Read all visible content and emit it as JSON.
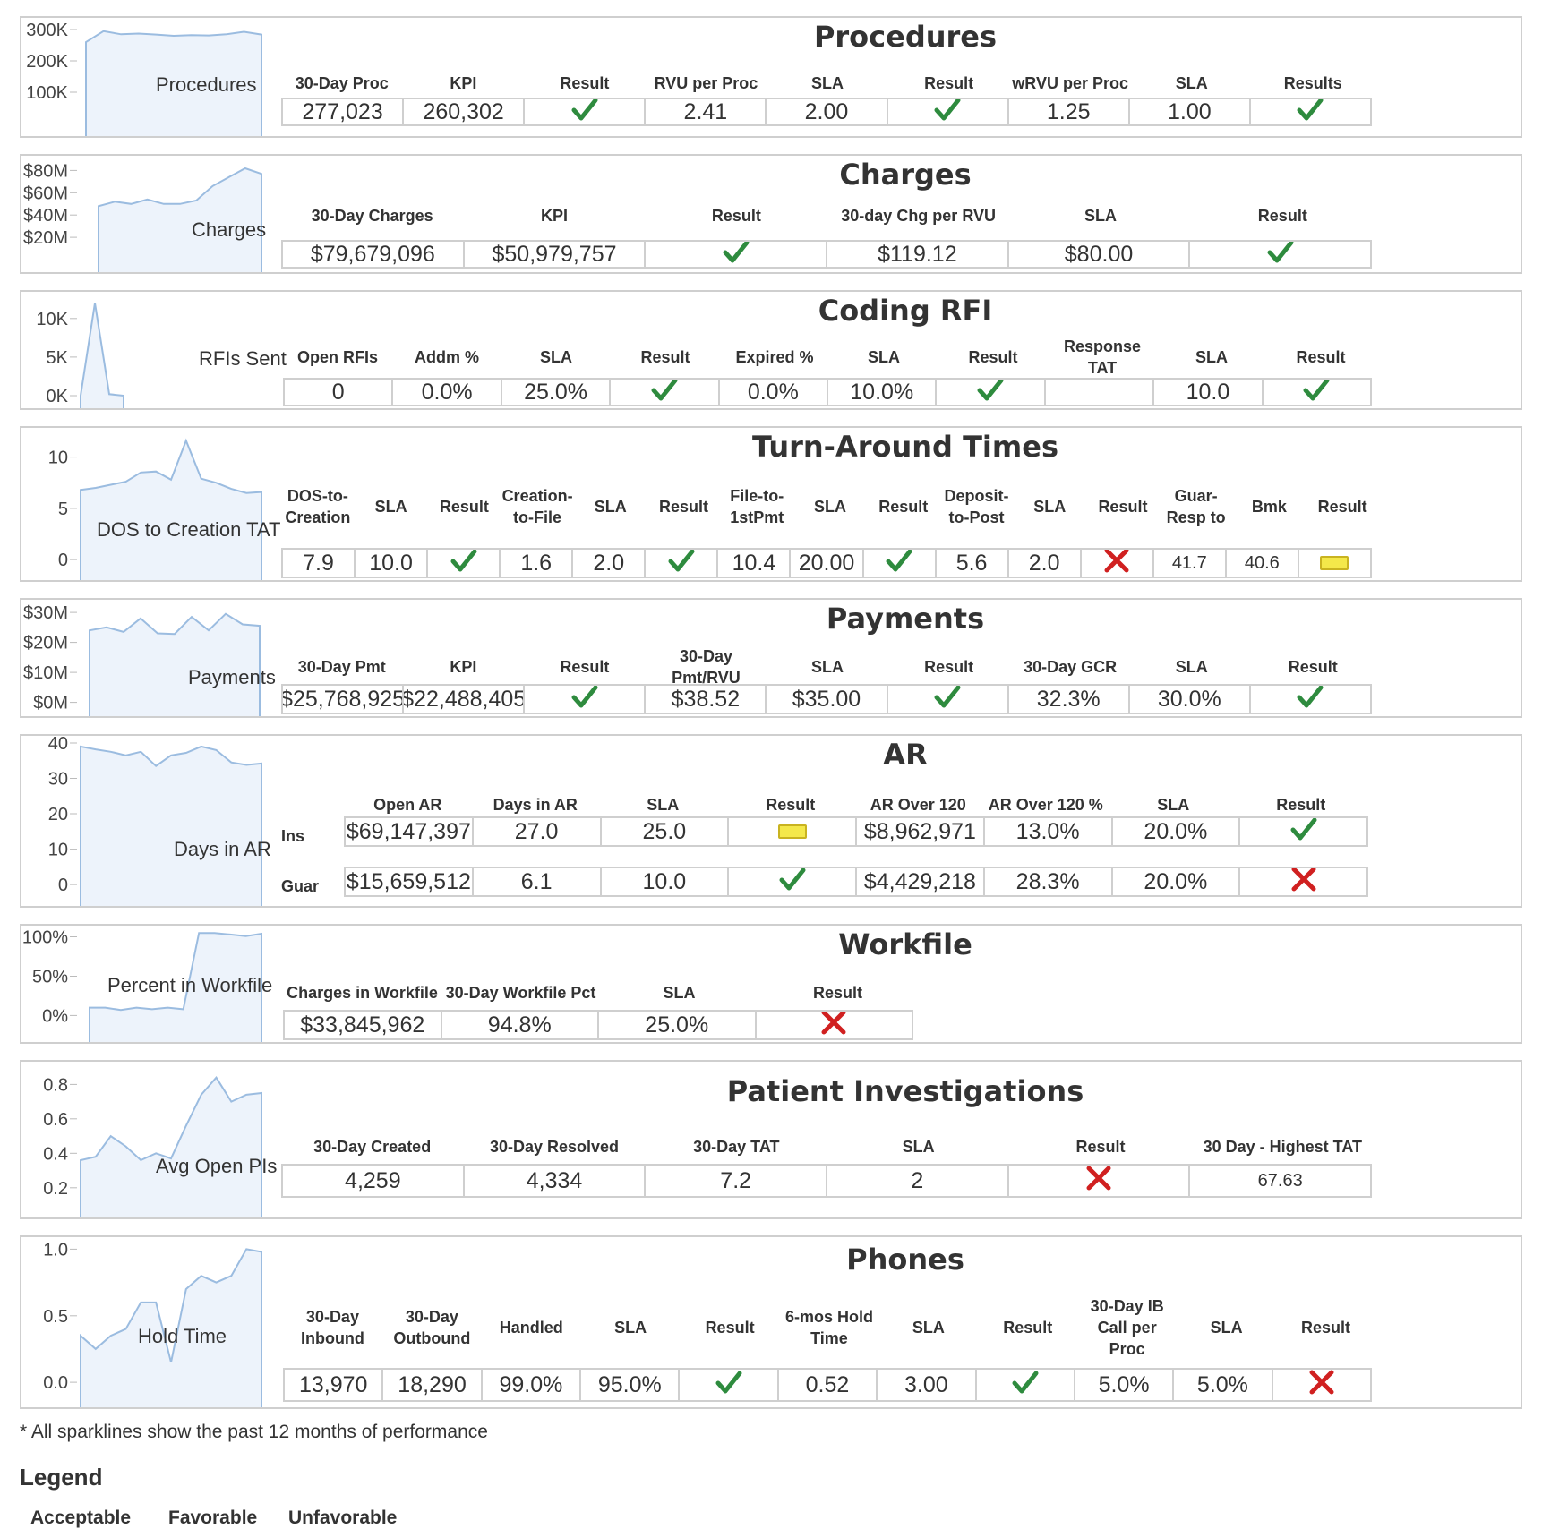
{
  "colors": {
    "spark_line": "#9bbce0",
    "spark_fill": "#edf3fb",
    "check": "#2e8b3e",
    "cross": "#d02020",
    "warn": "#f4e84a"
  },
  "procedures": {
    "title": "Procedures",
    "spark_label": "Procedures",
    "ticks": [
      "300K",
      "200K",
      "100K"
    ],
    "headers": [
      "30-Day Proc",
      "KPI",
      "Result",
      "RVU per Proc",
      "SLA",
      "Result",
      "wRVU per Proc",
      "SLA",
      "Results"
    ],
    "values": [
      "277,023",
      "260,302",
      "check-icon",
      "2.41",
      "2.00",
      "check-icon",
      "1.25",
      "1.00",
      "check-icon"
    ]
  },
  "charges": {
    "title": "Charges",
    "spark_label": "Charges",
    "ticks": [
      "$80M",
      "$60M",
      "$40M",
      "$20M"
    ],
    "headers": [
      "30-Day Charges",
      "KPI",
      "Result",
      "30-day Chg per RVU",
      "SLA",
      "Result"
    ],
    "values": [
      "$79,679,096",
      "$50,979,757",
      "check-icon",
      "$119.12",
      "$80.00",
      "check-icon"
    ]
  },
  "coding_rfi": {
    "title": "Coding RFI",
    "spark_label": "RFIs Sent",
    "ticks": [
      "10K",
      "5K",
      "0K"
    ],
    "headers": [
      "Open RFIs",
      "Addm %",
      "SLA",
      "Result",
      "Expired %",
      "SLA",
      "Result",
      "Response TAT",
      "SLA",
      "Result"
    ],
    "values": [
      "0",
      "0.0%",
      "25.0%",
      "check-icon",
      "0.0%",
      "10.0%",
      "check-icon",
      "",
      "10.0",
      "check-icon"
    ]
  },
  "tat": {
    "title": "Turn-Around Times",
    "spark_label": "DOS to Creation TAT",
    "ticks": [
      "10",
      "5",
      "0"
    ],
    "headers": [
      "DOS-to-\nCreation",
      "SLA",
      "Result",
      "Creation-\nto-File",
      "SLA",
      "Result",
      "File-to-\n1stPmt",
      "SLA",
      "Result",
      "Deposit-\nto-Post",
      "SLA",
      "Result",
      "Guar-\nResp to",
      "Bmk",
      "Result"
    ],
    "values": [
      "7.9",
      "10.0",
      "check-icon",
      "1.6",
      "2.0",
      "check-icon",
      "10.4",
      "20.00",
      "check-icon",
      "5.6",
      "2.0",
      "cross-icon",
      "41.7",
      "40.6",
      "warn-icon"
    ]
  },
  "payments": {
    "title": "Payments",
    "spark_label": "Payments",
    "ticks": [
      "$30M",
      "$20M",
      "$10M",
      "$0M"
    ],
    "headers": [
      "30-Day Pmt",
      "KPI",
      "Result",
      "30-Day Pmt/RVU",
      "SLA",
      "Result",
      "30-Day GCR",
      "SLA",
      "Result"
    ],
    "values": [
      "$25,768,925",
      "$22,488,405",
      "check-icon",
      "$38.52",
      "$35.00",
      "check-icon",
      "32.3%",
      "30.0%",
      "check-icon"
    ]
  },
  "ar": {
    "title": "AR",
    "spark_label": "Days in AR",
    "ticks": [
      "40",
      "30",
      "20",
      "10",
      "0"
    ],
    "headers": [
      "Open AR",
      "Days in AR",
      "SLA",
      "Result",
      "AR Over 120",
      "AR Over 120 %",
      "SLA",
      "Result"
    ],
    "rows": [
      {
        "label": "Ins",
        "values": [
          "$69,147,397",
          "27.0",
          "25.0",
          "warn-icon",
          "$8,962,971",
          "13.0%",
          "20.0%",
          "check-icon"
        ]
      },
      {
        "label": "Guar",
        "values": [
          "$15,659,512",
          "6.1",
          "10.0",
          "check-icon",
          "$4,429,218",
          "28.3%",
          "20.0%",
          "cross-icon"
        ]
      }
    ]
  },
  "workfile": {
    "title": "Workfile",
    "spark_label": "Percent in Workfile",
    "ticks": [
      "100%",
      "50%",
      "0%"
    ],
    "headers": [
      "Charges in Workfile",
      "30-Day Workfile Pct",
      "SLA",
      "Result"
    ],
    "values": [
      "$33,845,962",
      "94.8%",
      "25.0%",
      "cross-icon"
    ]
  },
  "pi": {
    "title": "Patient Investigations",
    "spark_label": "Avg Open PIs",
    "ticks": [
      "0.8",
      "0.6",
      "0.4",
      "0.2"
    ],
    "headers": [
      "30-Day Created",
      "30-Day Resolved",
      "30-Day TAT",
      "SLA",
      "Result",
      "30 Day - Highest TAT"
    ],
    "values": [
      "4,259",
      "4,334",
      "7.2",
      "2",
      "cross-icon",
      "67.63"
    ]
  },
  "phones": {
    "title": "Phones",
    "spark_label": "Hold Time",
    "ticks": [
      "1.0",
      "0.5",
      "0.0"
    ],
    "headers": [
      "30-Day\nInbound",
      "30-Day\nOutbound",
      "Handled",
      "SLA",
      "Result",
      "6-mos Hold\nTime",
      "SLA",
      "Result",
      "30-Day IB\nCall per\nProc",
      "SLA",
      "Result"
    ],
    "values": [
      "13,970",
      "18,290",
      "99.0%",
      "95.0%",
      "check-icon",
      "0.52",
      "3.00",
      "check-icon",
      "5.0%",
      "5.0%",
      "cross-icon"
    ]
  },
  "sparklines": {
    "procedures": [
      260,
      295,
      285,
      287,
      284,
      280,
      282,
      281,
      285,
      293,
      284
    ],
    "charges": [
      48,
      52,
      50,
      54,
      50,
      50,
      53,
      66,
      74,
      82,
      77
    ],
    "coding_rfi": [
      0,
      12000,
      200,
      0
    ],
    "tat": [
      6.8,
      7.0,
      7.3,
      7.6,
      8.5,
      8.6,
      7.8,
      11.6,
      7.9,
      7.5,
      6.9,
      6.5,
      6.6
    ],
    "payments": [
      24,
      25,
      23.5,
      28,
      23,
      22.8,
      28.5,
      24,
      29.5,
      26,
      25.5
    ],
    "ar": [
      39,
      38.2,
      37.5,
      36.5,
      37.5,
      33.5,
      36.5,
      37.2,
      39,
      38,
      34.5,
      33.8,
      34.2
    ],
    "workfile": [
      10,
      10,
      7,
      10,
      8,
      10,
      8,
      105,
      105,
      103,
      101,
      104
    ],
    "pi": [
      0.36,
      0.38,
      0.5,
      0.44,
      0.36,
      0.4,
      0.37,
      0.56,
      0.74,
      0.84,
      0.7,
      0.74,
      0.75
    ],
    "phones": [
      0.35,
      0.25,
      0.35,
      0.4,
      0.6,
      0.6,
      0.15,
      0.7,
      0.8,
      0.75,
      0.8,
      1.0,
      0.98
    ]
  },
  "footnote": "* All sparklines show the past 12 months of performance",
  "legend": {
    "title": "Legend",
    "items": [
      "Acceptable",
      "Favorable",
      "Unfavorable"
    ]
  }
}
